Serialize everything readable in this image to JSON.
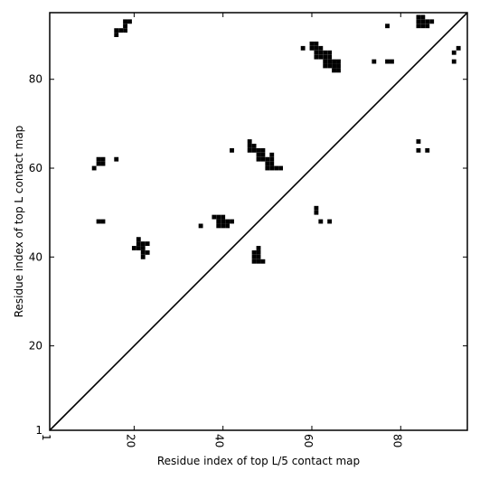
{
  "chart_data": {
    "type": "heatmap",
    "title": "",
    "xlabel": "Residue index of top L/5 contact map",
    "ylabel": "Residue index of top L contact map",
    "xlim": [
      1,
      95
    ],
    "ylim": [
      1,
      95
    ],
    "x_ticks": [
      1,
      20,
      40,
      60,
      80
    ],
    "y_ticks": [
      1,
      20,
      40,
      60,
      80
    ],
    "x_tick_rotation": -90,
    "grid": false,
    "diagonal_line": true,
    "cell_color": "#000000",
    "contacts": [
      [
        16,
        90
      ],
      [
        16,
        91
      ],
      [
        17,
        91
      ],
      [
        18,
        91
      ],
      [
        18,
        92
      ],
      [
        18,
        93
      ],
      [
        19,
        93
      ],
      [
        12,
        61
      ],
      [
        12,
        62
      ],
      [
        13,
        61
      ],
      [
        13,
        62
      ],
      [
        11,
        60
      ],
      [
        16,
        62
      ],
      [
        12,
        48
      ],
      [
        13,
        48
      ],
      [
        21,
        42
      ],
      [
        21,
        43
      ],
      [
        21,
        44
      ],
      [
        22,
        42
      ],
      [
        22,
        43
      ],
      [
        22,
        41
      ],
      [
        22,
        40
      ],
      [
        23,
        43
      ],
      [
        23,
        41
      ],
      [
        20,
        42
      ],
      [
        35,
        47
      ],
      [
        38,
        49
      ],
      [
        39,
        49
      ],
      [
        39,
        48
      ],
      [
        39,
        47
      ],
      [
        40,
        49
      ],
      [
        40,
        48
      ],
      [
        40,
        47
      ],
      [
        41,
        48
      ],
      [
        41,
        47
      ],
      [
        42,
        48
      ],
      [
        42,
        64
      ],
      [
        46,
        64
      ],
      [
        46,
        65
      ],
      [
        46,
        66
      ],
      [
        47,
        64
      ],
      [
        47,
        65
      ],
      [
        48,
        62
      ],
      [
        48,
        63
      ],
      [
        48,
        64
      ],
      [
        49,
        62
      ],
      [
        49,
        63
      ],
      [
        49,
        64
      ],
      [
        50,
        60
      ],
      [
        50,
        61
      ],
      [
        50,
        62
      ],
      [
        51,
        60
      ],
      [
        51,
        61
      ],
      [
        51,
        62
      ],
      [
        51,
        63
      ],
      [
        52,
        60
      ],
      [
        53,
        60
      ],
      [
        47,
        39
      ],
      [
        47,
        40
      ],
      [
        47,
        41
      ],
      [
        48,
        39
      ],
      [
        48,
        40
      ],
      [
        48,
        41
      ],
      [
        48,
        42
      ],
      [
        49,
        39
      ],
      [
        58,
        87
      ],
      [
        60,
        87
      ],
      [
        60,
        88
      ],
      [
        61,
        85
      ],
      [
        61,
        86
      ],
      [
        61,
        87
      ],
      [
        61,
        88
      ],
      [
        62,
        85
      ],
      [
        62,
        86
      ],
      [
        62,
        87
      ],
      [
        63,
        83
      ],
      [
        63,
        84
      ],
      [
        63,
        85
      ],
      [
        63,
        86
      ],
      [
        64,
        83
      ],
      [
        64,
        84
      ],
      [
        64,
        85
      ],
      [
        64,
        86
      ],
      [
        65,
        82
      ],
      [
        65,
        83
      ],
      [
        65,
        84
      ],
      [
        66,
        82
      ],
      [
        66,
        83
      ],
      [
        66,
        84
      ],
      [
        61,
        50
      ],
      [
        61,
        51
      ],
      [
        62,
        48
      ],
      [
        64,
        48
      ],
      [
        74,
        84
      ],
      [
        77,
        84
      ],
      [
        78,
        84
      ],
      [
        77,
        92
      ],
      [
        84,
        92
      ],
      [
        84,
        93
      ],
      [
        84,
        94
      ],
      [
        85,
        92
      ],
      [
        85,
        93
      ],
      [
        85,
        94
      ],
      [
        86,
        92
      ],
      [
        86,
        93
      ],
      [
        87,
        93
      ],
      [
        84,
        66
      ],
      [
        84,
        64
      ],
      [
        86,
        64
      ],
      [
        92,
        84
      ],
      [
        92,
        86
      ],
      [
        93,
        87
      ]
    ]
  }
}
